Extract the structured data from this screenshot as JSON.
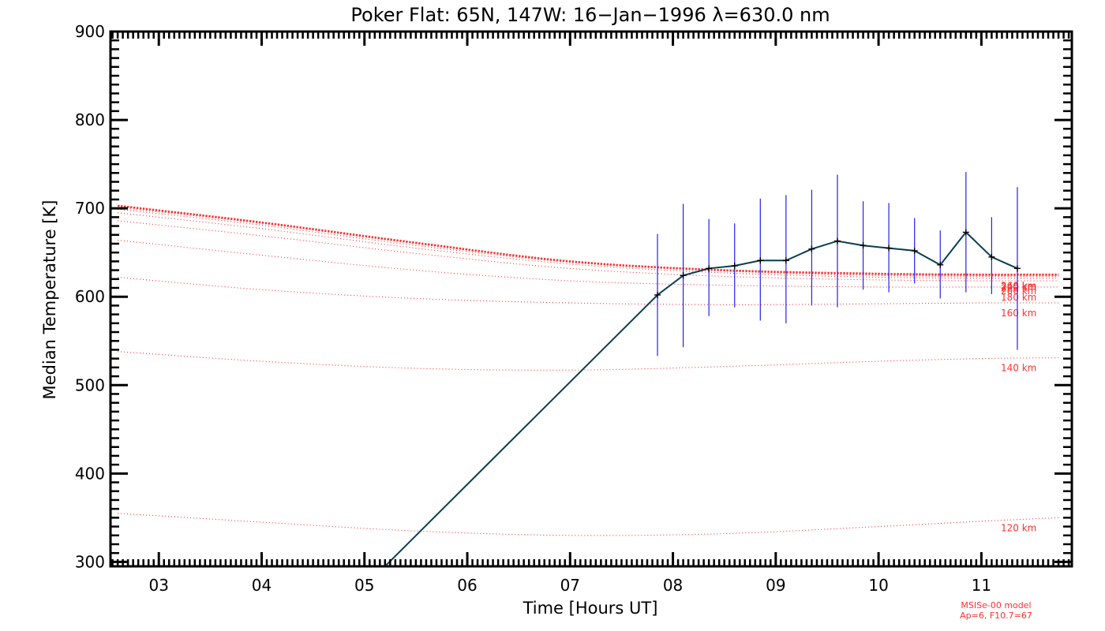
{
  "chart_data": {
    "type": "line",
    "title": "Poker Flat: 65N, 147W: 16−Jan−1996 λ=630.0 nm",
    "xlabel": "Time [Hours UT]",
    "ylabel": "Median Temperature [K]",
    "xlim": [
      2.53,
      11.88
    ],
    "ylim": [
      295,
      900
    ],
    "x_ticks": [
      3,
      4,
      5,
      6,
      7,
      8,
      9,
      10,
      11
    ],
    "x_tick_labels": [
      "03",
      "04",
      "05",
      "06",
      "07",
      "08",
      "09",
      "10",
      "11"
    ],
    "y_ticks": [
      300,
      400,
      500,
      600,
      700,
      800,
      900
    ],
    "y_tick_labels": [
      "300",
      "400",
      "500",
      "600",
      "700",
      "800",
      "900"
    ],
    "model_note": [
      "MSISe-00 model",
      "Ap=6, F10.7=67"
    ],
    "colors": {
      "observed": "#0a3d52",
      "error_bar": "#2222ee",
      "model": "#ff3030",
      "axis": "#000000"
    },
    "series": [
      {
        "name": "observed",
        "x": [
          5.2,
          7.85,
          8.1,
          8.35,
          8.6,
          8.85,
          9.1,
          9.35,
          9.6,
          9.85,
          10.1,
          10.35,
          10.6,
          10.85,
          11.1,
          11.35
        ],
        "y": [
          295,
          602,
          624,
          632,
          635,
          641,
          641,
          654,
          663,
          658,
          655,
          652,
          636,
          673,
          645,
          632
        ],
        "err_low": [
          null,
          533,
          543,
          578,
          588,
          573,
          570,
          590,
          588,
          608,
          605,
          615,
          598,
          605,
          603,
          540
        ],
        "err_high": [
          null,
          671,
          705,
          688,
          683,
          711,
          715,
          721,
          738,
          708,
          706,
          689,
          675,
          741,
          690,
          724
        ]
      }
    ],
    "model_curves": [
      {
        "name": "120 km",
        "label": "120 km",
        "x": [
          2.6,
          4.0,
          5.5,
          7.0,
          8.5,
          10.0,
          11.0,
          11.75
        ],
        "y": [
          355,
          345,
          335,
          330,
          332,
          340,
          346,
          350
        ]
      },
      {
        "name": "140 km",
        "label": "140 km",
        "x": [
          2.6,
          4.0,
          5.5,
          7.0,
          8.5,
          10.0,
          11.0,
          11.75
        ],
        "y": [
          538,
          527,
          519,
          517,
          521,
          527,
          530,
          531
        ]
      },
      {
        "name": "160 km",
        "label": "160 km",
        "x": [
          2.6,
          4.0,
          5.5,
          7.0,
          8.5,
          10.0,
          11.0,
          11.75
        ],
        "y": [
          622,
          608,
          598,
          593,
          591,
          592,
          593,
          593
        ]
      },
      {
        "name": "180 km",
        "label": "180 km",
        "x": [
          2.6,
          4.0,
          5.5,
          7.0,
          8.5,
          10.0,
          11.0,
          11.75
        ],
        "y": [
          664,
          647,
          630,
          618,
          613,
          611,
          611,
          611
        ]
      },
      {
        "name": "200 km",
        "label": "200 km",
        "x": [
          2.6,
          4.0,
          5.5,
          7.0,
          8.5,
          10.0,
          11.0,
          11.75
        ],
        "y": [
          686,
          669,
          649,
          632,
          623,
          619,
          618,
          618
        ]
      },
      {
        "name": "220 km",
        "label": "220 km",
        "x": [
          2.6,
          4.0,
          5.5,
          7.0,
          8.5,
          10.0,
          11.0,
          11.75
        ],
        "y": [
          695,
          677,
          655,
          637,
          627,
          622,
          621,
          621
        ]
      },
      {
        "name": "240 km",
        "label": "240 km",
        "x": [
          2.6,
          4.0,
          5.5,
          7.0,
          8.5,
          10.0,
          11.0,
          11.75
        ],
        "y": [
          699,
          681,
          658,
          639,
          629,
          624,
          623,
          623
        ]
      },
      {
        "name": "260 km",
        "label": "260 km",
        "x": [
          2.6,
          4.0,
          5.5,
          7.0,
          8.5,
          10.0,
          11.0,
          11.75
        ],
        "y": [
          701,
          683,
          660,
          640,
          630,
          625,
          624,
          624
        ]
      },
      {
        "name": "exospheric",
        "label": "",
        "x": [
          2.6,
          4.0,
          5.5,
          7.0,
          8.5,
          10.0,
          11.0,
          11.75
        ],
        "y": [
          703,
          684,
          661,
          640,
          630,
          626,
          625,
          625
        ]
      }
    ]
  }
}
